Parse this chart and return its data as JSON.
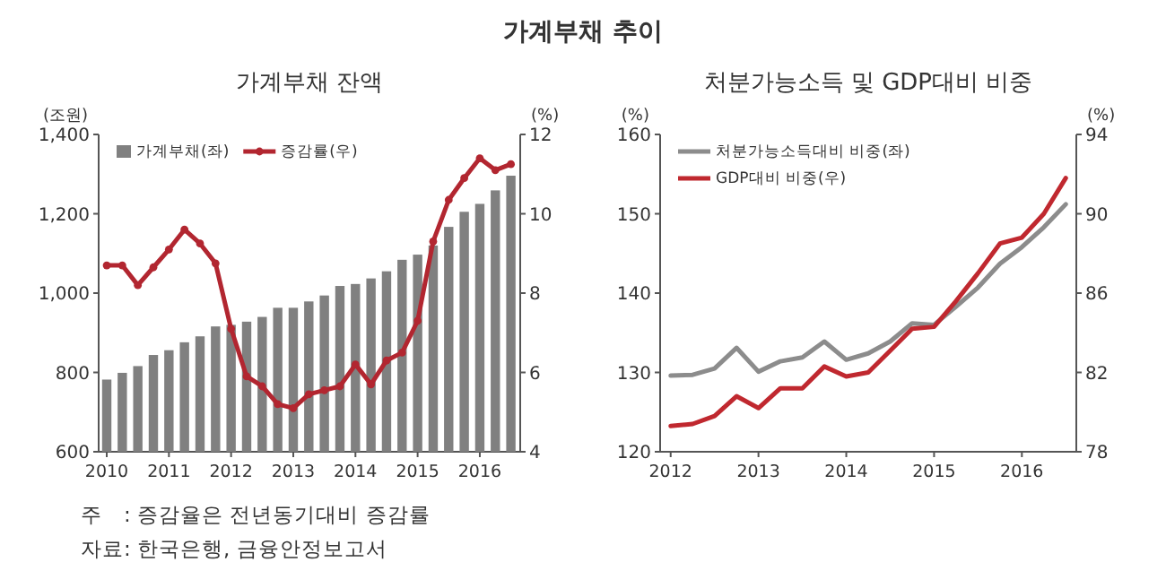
{
  "chart_data": [
    {
      "type": "bar",
      "title": "가계부채 잔액",
      "ylabel": "(조원)",
      "y2label": "(%)",
      "annotations": [
        "가계부채 추이",
        "주　: 증감율은 전년동기대비 증감률",
        "자료: 한국은행, 금융안정보고서"
      ],
      "x": [
        2010,
        2010.25,
        2010.5,
        2010.75,
        2011,
        2011.25,
        2011.5,
        2011.75,
        2012,
        2012.25,
        2012.5,
        2012.75,
        2013,
        2013.25,
        2013.5,
        2013.75,
        2014,
        2014.25,
        2014.5,
        2014.75,
        2015,
        2015.25,
        2015.5,
        2015.75,
        2016,
        2016.25,
        2016.5
      ],
      "series": [
        {
          "name": "가계부채(좌)",
          "type": "bar",
          "color": "#808080",
          "values": [
            782,
            799,
            816,
            844,
            856,
            876,
            891,
            916,
            920,
            928,
            940,
            963,
            963,
            979,
            994,
            1018,
            1023,
            1037,
            1055,
            1084,
            1097,
            1120,
            1167,
            1205,
            1225,
            1259,
            1296
          ]
        },
        {
          "name": "증감률(우)",
          "type": "line",
          "axis": "y2",
          "color": "#b22630",
          "values": [
            8.7,
            8.7,
            8.2,
            8.65,
            9.1,
            9.6,
            9.25,
            8.75,
            7.1,
            5.9,
            5.65,
            5.2,
            5.1,
            5.45,
            5.55,
            5.65,
            6.2,
            5.7,
            6.3,
            6.5,
            7.3,
            9.3,
            10.35,
            10.9,
            11.4,
            11.1,
            11.25
          ]
        }
      ],
      "xlim": [
        2009.87,
        2016.65
      ],
      "xticks": [
        2010,
        2011,
        2012,
        2013,
        2014,
        2015,
        2016
      ],
      "ylim": [
        600,
        1400
      ],
      "yticks": [
        600,
        800,
        {
          "value": 1000,
          "label": "1,000"
        },
        {
          "value": 1200,
          "label": "1,200"
        },
        {
          "value": 1400,
          "label": "1,400"
        }
      ],
      "y2lim": [
        4,
        12
      ],
      "y2ticks": [
        4,
        6,
        8,
        10,
        12
      ],
      "legend": "top left",
      "marker": "circle",
      "grid": false
    },
    {
      "type": "line",
      "title": "처분가능소득 및 GDP대비 비중",
      "ylabel": "(%)",
      "y2label": "(%)",
      "x": [
        2012,
        2012.25,
        2012.5,
        2012.75,
        2013,
        2013.25,
        2013.5,
        2013.75,
        2014,
        2014.25,
        2014.5,
        2014.75,
        2015,
        2015.25,
        2015.5,
        2015.75,
        2016,
        2016.25,
        2016.5
      ],
      "series": [
        {
          "name": "처분가능소득대비 비중(좌)",
          "color": "#8c8c8c",
          "values": [
            129.6,
            129.7,
            130.5,
            133.1,
            130.1,
            131.4,
            131.9,
            133.9,
            131.6,
            132.4,
            133.9,
            136.2,
            136.0,
            138.3,
            140.7,
            143.7,
            145.8,
            148.3,
            151.2
          ]
        },
        {
          "name": "GDP대비 비중(우)",
          "axis": "y2",
          "color": "#c0282f",
          "values": [
            79.3,
            79.4,
            79.8,
            80.8,
            80.2,
            81.2,
            81.2,
            82.3,
            81.8,
            82.0,
            83.1,
            84.2,
            84.3,
            85.6,
            87.0,
            88.5,
            88.8,
            90.0,
            91.8
          ]
        }
      ],
      "xlim": [
        2011.88,
        2016.62
      ],
      "xticks": [
        2012,
        2013,
        2014,
        2015,
        2016
      ],
      "ylim": [
        120,
        160
      ],
      "yticks": [
        120,
        130,
        140,
        150,
        160
      ],
      "y2lim": [
        78,
        94
      ],
      "y2ticks": [
        78,
        82,
        86,
        90,
        94
      ],
      "legend": "top left",
      "grid": false
    }
  ]
}
